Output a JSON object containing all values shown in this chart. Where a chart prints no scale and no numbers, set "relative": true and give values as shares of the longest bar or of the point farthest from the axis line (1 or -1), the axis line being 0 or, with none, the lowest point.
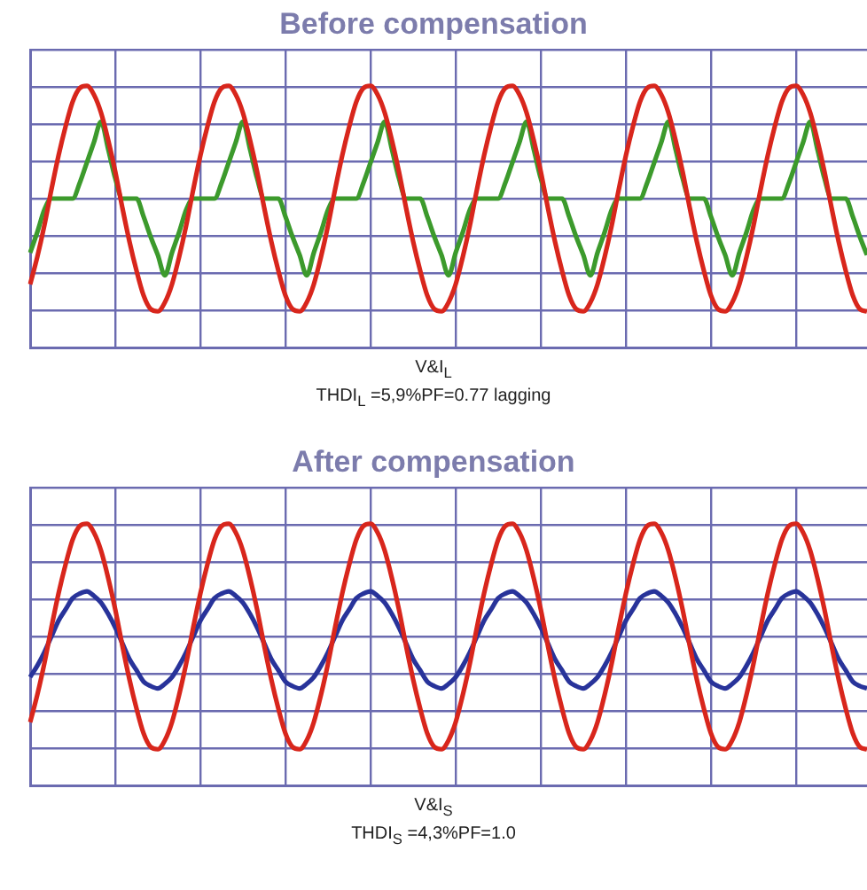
{
  "chart_data": [
    {
      "type": "line",
      "title": "Before compensation",
      "xlabel": "V&I$_{L}$",
      "annotations": [
        "THDI$_{L}$ =5,9%PF=0.77 lagging"
      ],
      "relative": true,
      "grid": true,
      "tick_labels": false,
      "categories": [
        null,
        null,
        null,
        null,
        null,
        null,
        null,
        null,
        null,
        null,
        null,
        null,
        null,
        null,
        null,
        null,
        null,
        null,
        null,
        null,
        null,
        null,
        null,
        null,
        null,
        null,
        null,
        null,
        null,
        null,
        null,
        null,
        null,
        null,
        null,
        null,
        null,
        null,
        null,
        null,
        null,
        null,
        null,
        null,
        null,
        null,
        null,
        null,
        null,
        null,
        null,
        null,
        null,
        null,
        null,
        null,
        null,
        null,
        null,
        null,
        null,
        null,
        null,
        null,
        null,
        null,
        null,
        null,
        null,
        null,
        null,
        null,
        null,
        null,
        null,
        null,
        null,
        null,
        null,
        null,
        null,
        null,
        null,
        null,
        null,
        null,
        null,
        null,
        null,
        null,
        null,
        null,
        null,
        null,
        null,
        null,
        null,
        null,
        null,
        null,
        null,
        null,
        null,
        null,
        null,
        null,
        null,
        null,
        null,
        null,
        null,
        null,
        null,
        null,
        null,
        null,
        null,
        null,
        null
      ],
      "series": [
        {
          "color": "#d8261c",
          "values": [
            0.12,
            0.24,
            0.38,
            0.54,
            0.69,
            0.82,
            0.93,
            0.99,
            1,
            0.96,
            0.88,
            0.76,
            0.62,
            0.46,
            0.31,
            0.18,
            0.07,
            0.01,
            0,
            0.04,
            0.12,
            0.24,
            0.38,
            0.54,
            0.69,
            0.82,
            0.93,
            0.99,
            1,
            0.96,
            0.88,
            0.76,
            0.62,
            0.46,
            0.31,
            0.18,
            0.07,
            0.01,
            0,
            0.04,
            0.12,
            0.24,
            0.38,
            0.54,
            0.69,
            0.82,
            0.93,
            0.99,
            1,
            0.96,
            0.88,
            0.76,
            0.62,
            0.46,
            0.31,
            0.18,
            0.07,
            0.01,
            0,
            0.04,
            0.12,
            0.24,
            0.38,
            0.54,
            0.69,
            0.82,
            0.93,
            0.99,
            1,
            0.96,
            0.88,
            0.76,
            0.62,
            0.46,
            0.31,
            0.18,
            0.07,
            0.01,
            0,
            0.04,
            0.12,
            0.24,
            0.38,
            0.54,
            0.69,
            0.82,
            0.93,
            0.99,
            1,
            0.96,
            0.88,
            0.76,
            0.62,
            0.46,
            0.31,
            0.18,
            0.07,
            0.01,
            0,
            0.04,
            0.12,
            0.24,
            0.38,
            0.54,
            0.69,
            0.82,
            0.93,
            0.99,
            1,
            0.96,
            0.88,
            0.76,
            0.62,
            0.46,
            0.31,
            0.18,
            0.07,
            0.01,
            0
          ]
        },
        {
          "color": "#3c9a2c",
          "values": [
            0.26,
            0.35,
            0.45,
            0.5,
            0.5,
            0.5,
            0.5,
            0.57,
            0.66,
            0.75,
            0.84,
            0.72,
            0.59,
            0.5,
            0.5,
            0.5,
            0.42,
            0.33,
            0.25,
            0.16,
            0.26,
            0.35,
            0.45,
            0.5,
            0.5,
            0.5,
            0.5,
            0.57,
            0.66,
            0.75,
            0.84,
            0.72,
            0.59,
            0.5,
            0.5,
            0.5,
            0.42,
            0.33,
            0.25,
            0.16,
            0.26,
            0.35,
            0.45,
            0.5,
            0.5,
            0.5,
            0.5,
            0.57,
            0.66,
            0.75,
            0.84,
            0.72,
            0.59,
            0.5,
            0.5,
            0.5,
            0.42,
            0.33,
            0.25,
            0.16,
            0.26,
            0.35,
            0.45,
            0.5,
            0.5,
            0.5,
            0.5,
            0.57,
            0.66,
            0.75,
            0.84,
            0.72,
            0.59,
            0.5,
            0.5,
            0.5,
            0.42,
            0.33,
            0.25,
            0.16,
            0.26,
            0.35,
            0.45,
            0.5,
            0.5,
            0.5,
            0.5,
            0.57,
            0.66,
            0.75,
            0.84,
            0.72,
            0.59,
            0.5,
            0.5,
            0.5,
            0.42,
            0.33,
            0.25,
            0.16,
            0.26,
            0.35,
            0.45,
            0.5,
            0.5,
            0.5,
            0.5,
            0.57,
            0.66,
            0.75,
            0.84,
            0.72,
            0.59,
            0.5,
            0.5,
            0.5,
            0.42,
            0.33,
            0.25
          ]
        }
      ]
    },
    {
      "type": "line",
      "title": "After compensation",
      "xlabel": "V&I$_{S}$",
      "annotations": [
        "THDI$_{S}$ =4,3%PF=1.0"
      ],
      "relative": true,
      "grid": true,
      "tick_labels": false,
      "categories": [
        null,
        null,
        null,
        null,
        null,
        null,
        null,
        null,
        null,
        null,
        null,
        null,
        null,
        null,
        null,
        null,
        null,
        null,
        null,
        null,
        null,
        null,
        null,
        null,
        null,
        null,
        null,
        null,
        null,
        null,
        null,
        null,
        null,
        null,
        null,
        null,
        null,
        null,
        null,
        null,
        null,
        null,
        null,
        null,
        null,
        null,
        null,
        null,
        null,
        null,
        null,
        null,
        null,
        null,
        null,
        null,
        null,
        null,
        null,
        null,
        null,
        null,
        null,
        null,
        null,
        null,
        null,
        null,
        null,
        null,
        null,
        null,
        null,
        null,
        null,
        null,
        null,
        null,
        null,
        null,
        null,
        null,
        null,
        null,
        null,
        null,
        null,
        null,
        null,
        null,
        null,
        null,
        null,
        null,
        null,
        null,
        null,
        null,
        null,
        null,
        null,
        null,
        null,
        null,
        null,
        null,
        null,
        null,
        null,
        null,
        null,
        null,
        null,
        null,
        null,
        null,
        null,
        null,
        null
      ],
      "series": [
        {
          "color": "#d8261c",
          "values": [
            0.12,
            0.24,
            0.38,
            0.54,
            0.69,
            0.82,
            0.93,
            0.99,
            1,
            0.96,
            0.88,
            0.76,
            0.62,
            0.46,
            0.31,
            0.18,
            0.07,
            0.01,
            0,
            0.04,
            0.12,
            0.24,
            0.38,
            0.54,
            0.69,
            0.82,
            0.93,
            0.99,
            1,
            0.96,
            0.88,
            0.76,
            0.62,
            0.46,
            0.31,
            0.18,
            0.07,
            0.01,
            0,
            0.04,
            0.12,
            0.24,
            0.38,
            0.54,
            0.69,
            0.82,
            0.93,
            0.99,
            1,
            0.96,
            0.88,
            0.76,
            0.62,
            0.46,
            0.31,
            0.18,
            0.07,
            0.01,
            0,
            0.04,
            0.12,
            0.24,
            0.38,
            0.54,
            0.69,
            0.82,
            0.93,
            0.99,
            1,
            0.96,
            0.88,
            0.76,
            0.62,
            0.46,
            0.31,
            0.18,
            0.07,
            0.01,
            0,
            0.04,
            0.12,
            0.24,
            0.38,
            0.54,
            0.69,
            0.82,
            0.93,
            0.99,
            1,
            0.96,
            0.88,
            0.76,
            0.62,
            0.46,
            0.31,
            0.18,
            0.07,
            0.01,
            0,
            0.04,
            0.12,
            0.24,
            0.38,
            0.54,
            0.69,
            0.82,
            0.93,
            0.99,
            1,
            0.96,
            0.88,
            0.76,
            0.62,
            0.46,
            0.31,
            0.18,
            0.07,
            0.01,
            0
          ]
        },
        {
          "color": "#28339a",
          "values": [
            0.32,
            0.37,
            0.43,
            0.5,
            0.57,
            0.62,
            0.67,
            0.69,
            0.7,
            0.68,
            0.65,
            0.6,
            0.54,
            0.47,
            0.4,
            0.35,
            0.3,
            0.28,
            0.27,
            0.29,
            0.32,
            0.37,
            0.43,
            0.5,
            0.57,
            0.62,
            0.67,
            0.69,
            0.7,
            0.68,
            0.65,
            0.6,
            0.54,
            0.47,
            0.4,
            0.35,
            0.3,
            0.28,
            0.27,
            0.29,
            0.32,
            0.37,
            0.43,
            0.5,
            0.57,
            0.62,
            0.67,
            0.69,
            0.7,
            0.68,
            0.65,
            0.6,
            0.54,
            0.47,
            0.4,
            0.35,
            0.3,
            0.28,
            0.27,
            0.29,
            0.32,
            0.37,
            0.43,
            0.5,
            0.57,
            0.62,
            0.67,
            0.69,
            0.7,
            0.68,
            0.65,
            0.6,
            0.54,
            0.47,
            0.4,
            0.35,
            0.3,
            0.28,
            0.27,
            0.29,
            0.32,
            0.37,
            0.43,
            0.5,
            0.57,
            0.62,
            0.67,
            0.69,
            0.7,
            0.68,
            0.65,
            0.6,
            0.54,
            0.47,
            0.4,
            0.35,
            0.3,
            0.28,
            0.27,
            0.29,
            0.32,
            0.37,
            0.43,
            0.5,
            0.57,
            0.62,
            0.67,
            0.69,
            0.7,
            0.68,
            0.65,
            0.6,
            0.54,
            0.47,
            0.4,
            0.35,
            0.3,
            0.28,
            0.27
          ]
        }
      ]
    }
  ]
}
